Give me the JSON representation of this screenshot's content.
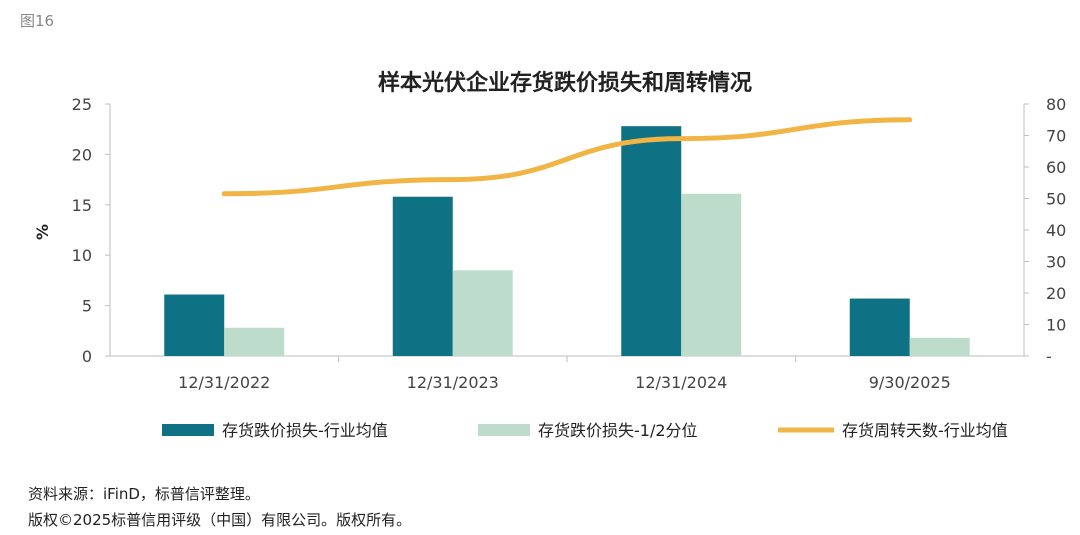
{
  "figure_label": "图16",
  "source_line1": "资料来源：iFinD，标普信评整理。",
  "source_line2": "版权©2025标普信用评级（中国）有限公司。版权所有。",
  "colors": {
    "bar1": "#0e7284",
    "bar2": "#bddccb",
    "line": "#f0b545",
    "axis": "#bfbfbf"
  },
  "chart_data": {
    "type": "bar",
    "title": "样本光伏企业存货跌价损失和周转情况",
    "categories": [
      "12/31/2022",
      "12/31/2023",
      "12/31/2024",
      "9/30/2025"
    ],
    "ylabel": "%",
    "ylim": [
      0,
      25
    ],
    "y_ticks": [
      "0",
      "5",
      "10",
      "15",
      "20",
      "25"
    ],
    "y2lim": [
      0,
      80
    ],
    "y2_ticks": [
      "-",
      "10",
      "20",
      "30",
      "40",
      "50",
      "60",
      "70",
      "80"
    ],
    "legend_position": "bottom",
    "series": [
      {
        "name": "存货跌价损失-行业均值",
        "type": "bar",
        "axis": "left",
        "values": [
          6.1,
          15.8,
          22.8,
          5.7
        ]
      },
      {
        "name": "存货跌价损失-1/2分位",
        "type": "bar",
        "axis": "left",
        "values": [
          2.8,
          8.5,
          16.1,
          1.8
        ]
      },
      {
        "name": "存货周转天数-行业均值",
        "type": "line",
        "axis": "right",
        "values": [
          51.5,
          56,
          69,
          75
        ]
      }
    ]
  }
}
